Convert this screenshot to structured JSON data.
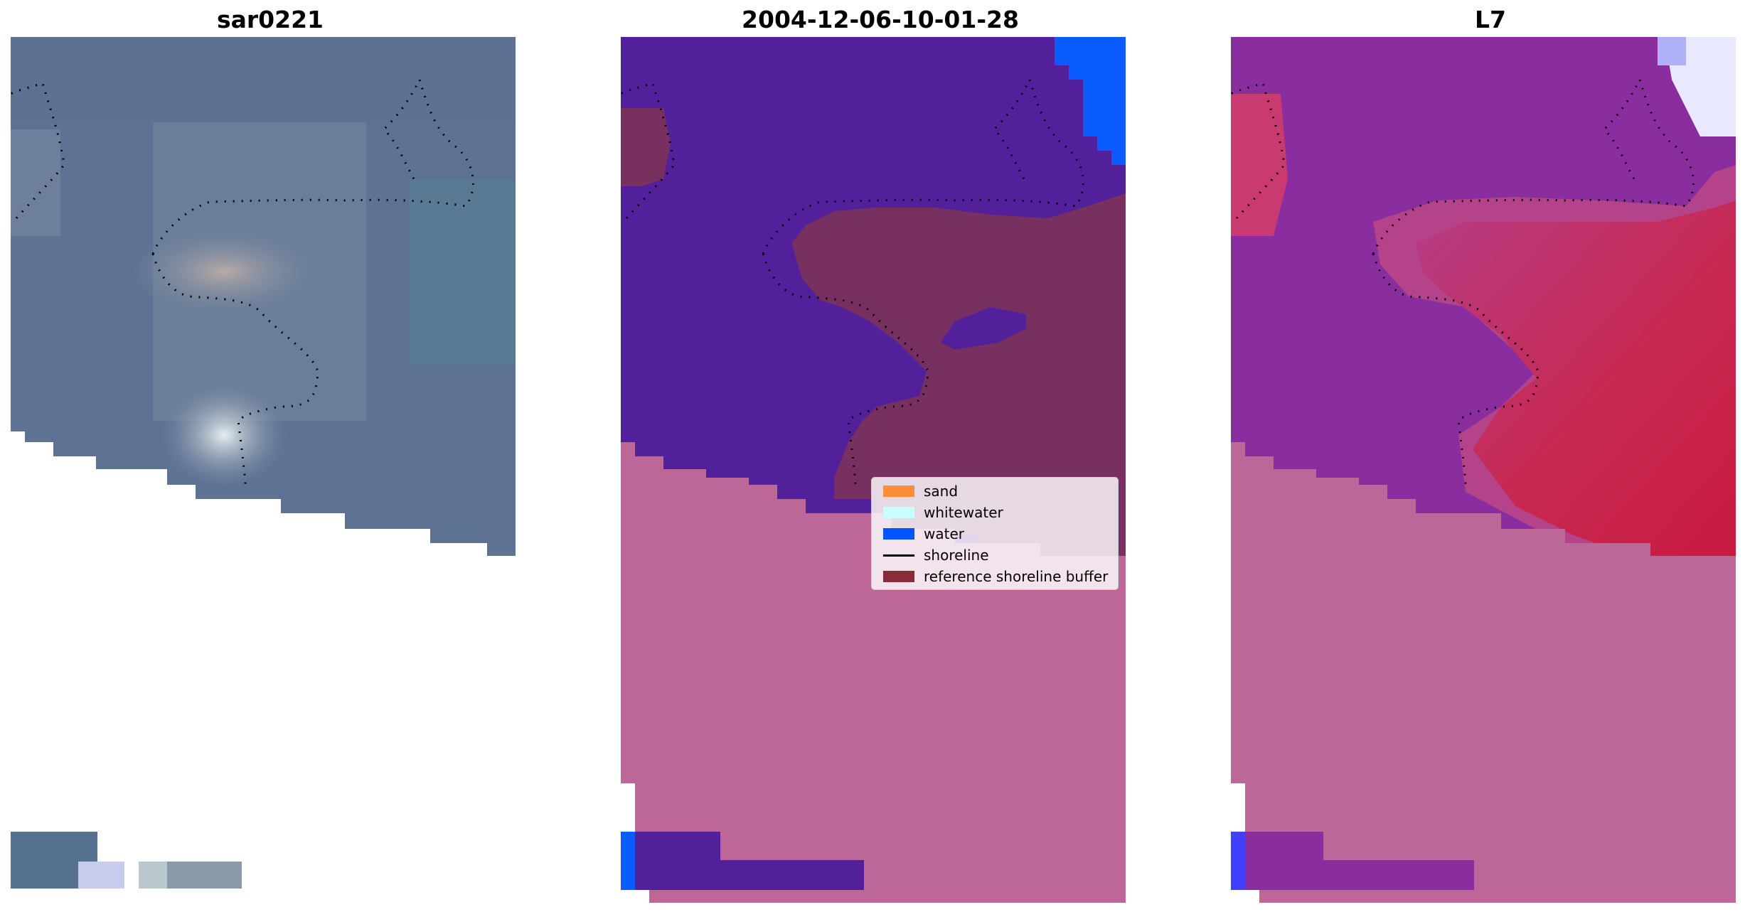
{
  "panels": [
    {
      "id": "p1",
      "title": "sar0221",
      "kind": "rgb"
    },
    {
      "id": "p2",
      "title": "2004-12-06-10-01-28",
      "kind": "classified"
    },
    {
      "id": "p3",
      "title": "L7",
      "kind": "index"
    }
  ],
  "legend": {
    "items": [
      {
        "label": "sand",
        "type": "patch",
        "color": "#ff8c3a"
      },
      {
        "label": "whitewater",
        "type": "patch",
        "color": "#c8ffff"
      },
      {
        "label": "water",
        "type": "patch",
        "color": "#0055ff"
      },
      {
        "label": "shoreline",
        "type": "line",
        "color": "#000000"
      },
      {
        "label": "reference shoreline buffer",
        "type": "patch",
        "color": "#8b2a38"
      }
    ]
  },
  "colors": {
    "rgb_base": "#5a6f8e",
    "classified_land": "#52209a",
    "classified_buffer": "#77305f",
    "classified_overlay": "#bc6797",
    "classified_water": "#0a5cff",
    "index_purple": "#8a2d9e",
    "index_red": "#c4214a",
    "index_overlay": "#bc6797"
  }
}
